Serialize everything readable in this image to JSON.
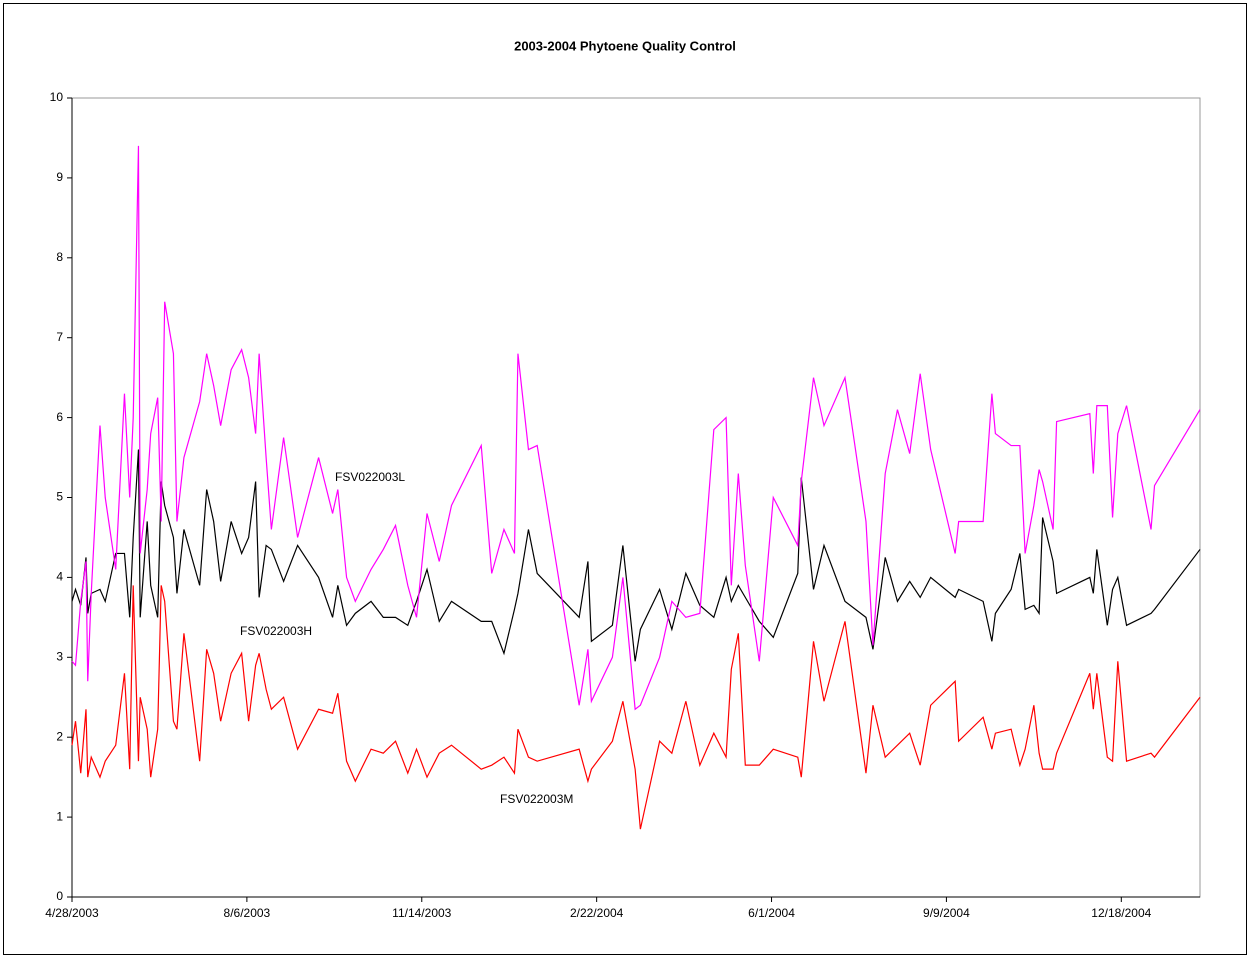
{
  "chart_data": {
    "type": "line",
    "title": "2003-2004 Phytoene Quality Control",
    "x": [
      "4/28/2003",
      "4/30/2003",
      "5/3/2003",
      "5/6/2003",
      "5/7/2003",
      "5/9/2003",
      "5/14/2003",
      "5/17/2003",
      "5/23/2003",
      "5/28/2003",
      "5/31/2003",
      "6/2/2003",
      "6/5/2003",
      "6/6/2003",
      "6/10/2003",
      "6/12/2003",
      "6/16/2003",
      "6/18/2003",
      "6/20/2003",
      "6/25/2003",
      "6/27/2003",
      "7/1/2003",
      "7/10/2003",
      "7/14/2003",
      "7/18/2003",
      "7/22/2003",
      "7/28/2003",
      "8/3/2003",
      "8/7/2003",
      "8/11/2003",
      "8/13/2003",
      "8/17/2003",
      "8/20/2003",
      "8/27/2003",
      "9/4/2003",
      "9/16/2003",
      "9/24/2003",
      "9/27/2003",
      "10/2/2003",
      "10/7/2003",
      "10/16/2003",
      "10/23/2003",
      "10/30/2003",
      "11/6/2003",
      "11/11/2003",
      "11/17/2003",
      "11/24/2003",
      "12/1/2003",
      "12/18/2003",
      "12/24/2003",
      "12/31/2003",
      "1/6/2004",
      "1/8/2004",
      "1/14/2004",
      "1/19/2004",
      "2/12/2004",
      "2/17/2004",
      "2/19/2004",
      "3/2/2004",
      "3/8/2004",
      "3/15/2004",
      "3/18/2004",
      "3/29/2004",
      "4/5/2004",
      "4/13/2004",
      "4/21/2004",
      "4/29/2004",
      "5/6/2004",
      "5/9/2004",
      "5/13/2004",
      "5/17/2004",
      "5/25/2004",
      "6/2/2004",
      "6/16/2004",
      "6/18/2004",
      "6/25/2004",
      "7/1/2004",
      "7/13/2004",
      "7/25/2004",
      "7/29/2004",
      "8/5/2004",
      "8/12/2004",
      "8/19/2004",
      "8/25/2004",
      "8/31/2004",
      "9/14/2004",
      "9/16/2004",
      "9/30/2004",
      "10/5/2004",
      "10/7/2004",
      "10/16/2004",
      "10/21/2004",
      "10/24/2004",
      "10/29/2004",
      "11/1/2004",
      "11/3/2004",
      "11/9/2004",
      "11/11/2004",
      "11/30/2004",
      "12/2/2004",
      "12/4/2004",
      "12/10/2004",
      "12/13/2004",
      "12/16/2004",
      "12/21/2004",
      "1/4/2005",
      "1/6/2005",
      "2/1/2005"
    ],
    "series": [
      {
        "name": "FSV022003M",
        "color": "#ff0000",
        "values": [
          1.9,
          2.2,
          1.55,
          2.35,
          1.5,
          1.75,
          1.5,
          1.7,
          1.9,
          2.8,
          1.6,
          3.9,
          1.7,
          2.5,
          2.1,
          1.5,
          2.1,
          3.9,
          3.7,
          2.2,
          2.1,
          3.3,
          1.7,
          3.1,
          2.8,
          2.2,
          2.8,
          3.05,
          2.2,
          2.9,
          3.05,
          2.6,
          2.35,
          2.5,
          1.85,
          2.35,
          2.3,
          2.55,
          1.7,
          1.45,
          1.85,
          1.8,
          1.95,
          1.55,
          1.85,
          1.5,
          1.8,
          1.9,
          1.6,
          1.65,
          1.75,
          1.55,
          2.1,
          1.75,
          1.7,
          1.85,
          1.45,
          1.6,
          1.95,
          2.45,
          1.6,
          0.85,
          1.95,
          1.8,
          2.45,
          1.65,
          2.05,
          1.75,
          2.85,
          3.3,
          1.65,
          1.65,
          1.85,
          1.75,
          1.5,
          3.2,
          2.45,
          3.45,
          1.55,
          2.4,
          1.75,
          1.9,
          2.05,
          1.65,
          2.4,
          2.7,
          1.95,
          2.25,
          1.85,
          2.05,
          2.1,
          1.65,
          1.85,
          2.4,
          1.8,
          1.6,
          1.6,
          1.8,
          2.8,
          2.35,
          2.8,
          1.75,
          1.7,
          2.95,
          1.7,
          1.8,
          1.75,
          2.5
        ]
      },
      {
        "name": "FSV022003H",
        "color": "#000000",
        "values": [
          3.7,
          3.85,
          3.65,
          4.25,
          3.55,
          3.8,
          3.85,
          3.7,
          4.3,
          4.3,
          3.5,
          4.5,
          5.6,
          3.5,
          4.7,
          3.9,
          3.5,
          5.2,
          4.9,
          4.5,
          3.8,
          4.6,
          3.9,
          5.1,
          4.7,
          3.95,
          4.7,
          4.3,
          4.5,
          5.2,
          3.75,
          4.4,
          4.35,
          3.95,
          4.4,
          4.0,
          3.5,
          3.9,
          3.4,
          3.55,
          3.7,
          3.5,
          3.5,
          3.4,
          3.7,
          4.1,
          3.45,
          3.7,
          3.45,
          3.45,
          3.05,
          3.6,
          3.8,
          4.6,
          4.05,
          3.5,
          4.2,
          3.2,
          3.4,
          4.4,
          2.95,
          3.35,
          3.85,
          3.35,
          4.05,
          3.65,
          3.5,
          4.0,
          3.7,
          3.9,
          3.75,
          3.45,
          3.25,
          4.05,
          5.25,
          3.85,
          4.4,
          3.7,
          3.5,
          3.1,
          4.25,
          3.7,
          3.95,
          3.75,
          4.0,
          3.75,
          3.85,
          3.7,
          3.2,
          3.55,
          3.85,
          4.3,
          3.6,
          3.65,
          3.55,
          4.75,
          4.2,
          3.8,
          4.0,
          3.8,
          4.35,
          3.4,
          3.85,
          4.0,
          3.4,
          3.55,
          3.6,
          4.35
        ]
      },
      {
        "name": "FSV022003L",
        "color": "#ff00ff",
        "values": [
          2.95,
          2.9,
          3.7,
          4.2,
          2.7,
          3.8,
          5.9,
          5.0,
          4.1,
          6.3,
          5.0,
          6.0,
          9.4,
          4.3,
          5.1,
          5.8,
          6.25,
          4.7,
          7.45,
          6.8,
          4.7,
          5.5,
          6.2,
          6.8,
          6.4,
          5.9,
          6.6,
          6.85,
          6.5,
          5.8,
          6.8,
          5.5,
          4.6,
          5.75,
          4.5,
          5.5,
          4.8,
          5.1,
          4.0,
          3.7,
          4.1,
          4.35,
          4.65,
          3.9,
          3.5,
          4.8,
          4.2,
          4.9,
          5.65,
          4.05,
          4.6,
          4.3,
          6.8,
          5.6,
          5.65,
          2.4,
          3.1,
          2.45,
          3.0,
          4.0,
          2.35,
          2.4,
          3.0,
          3.7,
          3.5,
          3.55,
          5.85,
          6.0,
          3.9,
          5.3,
          4.15,
          2.95,
          5.0,
          4.4,
          5.2,
          6.5,
          5.9,
          6.5,
          4.7,
          3.15,
          5.3,
          6.1,
          5.55,
          6.55,
          5.6,
          4.3,
          4.7,
          4.7,
          6.3,
          5.8,
          5.65,
          5.65,
          4.3,
          4.9,
          5.35,
          5.2,
          4.6,
          5.95,
          6.05,
          5.3,
          6.15,
          6.15,
          4.75,
          5.8,
          6.15,
          4.6,
          5.15,
          6.1
        ]
      }
    ],
    "xlim": [
      "4/28/2003",
      "2/1/2005"
    ],
    "xticks": [
      "4/28/2003",
      "8/6/2003",
      "11/14/2003",
      "2/22/2004",
      "6/1/2004",
      "9/9/2004",
      "12/18/2004"
    ],
    "ylim": [
      0,
      10
    ],
    "yticks": [
      0,
      1,
      2,
      3,
      4,
      5,
      6,
      7,
      8,
      9,
      10
    ],
    "grid": false,
    "legend": "none",
    "annotations": [
      "FSV022003L",
      "FSV022003H",
      "FSV022003M"
    ]
  }
}
